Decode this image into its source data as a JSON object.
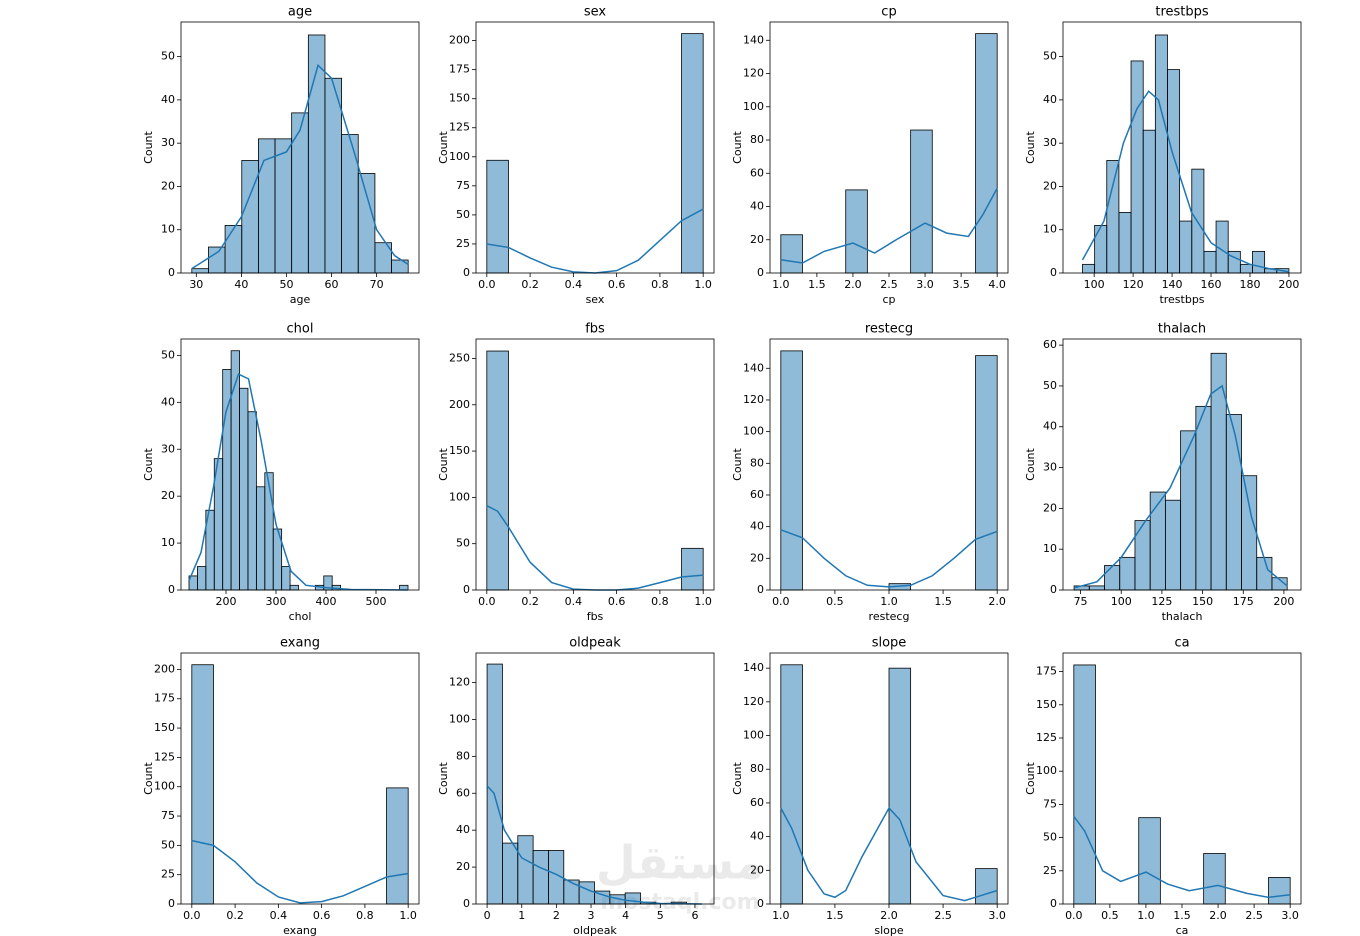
{
  "chart_data": [
    {
      "type": "histogram",
      "title": "age",
      "xlabel": "age",
      "ylabel": "Count",
      "color": "#1f77b4",
      "bins": [
        29,
        32.69,
        36.38,
        40.08,
        43.77,
        47.46,
        51.15,
        54.85,
        58.54,
        62.23,
        65.92,
        69.62,
        73.31,
        77
      ],
      "counts": [
        1,
        6,
        11,
        26,
        31,
        31,
        37,
        55,
        45,
        32,
        23,
        7,
        3
      ],
      "kde": {
        "x": [
          29,
          35,
          40,
          45,
          50,
          53,
          57,
          60,
          65,
          70,
          74,
          77
        ],
        "values": [
          1,
          5,
          13,
          26,
          28,
          33,
          48,
          45,
          28,
          10,
          4,
          2
        ]
      },
      "xlim": [
        26.6,
        79.4
      ],
      "ylim": [
        0,
        58
      ],
      "xticks": [
        30,
        40,
        50,
        60,
        70
      ],
      "yticks": [
        0,
        10,
        20,
        30,
        40,
        50
      ]
    },
    {
      "type": "histogram",
      "title": "sex",
      "xlabel": "sex",
      "ylabel": "Count",
      "color": "#1f77b4",
      "bins": [
        0,
        0.1,
        0.2,
        0.3,
        0.4,
        0.5,
        0.6,
        0.7,
        0.8,
        0.9,
        1
      ],
      "counts": [
        97,
        0,
        0,
        0,
        0,
        0,
        0,
        0,
        0,
        206
      ],
      "kde": {
        "x": [
          0,
          0.1,
          0.2,
          0.3,
          0.4,
          0.5,
          0.6,
          0.7,
          0.8,
          0.9,
          1
        ],
        "values": [
          25,
          22,
          13,
          5,
          1,
          0,
          2,
          11,
          28,
          45,
          55
        ]
      },
      "xlim": [
        -0.05,
        1.05
      ],
      "ylim": [
        0,
        216
      ],
      "xticks": [
        {
          "value": 0,
          "label": "0.0"
        },
        0.2,
        0.4,
        0.6,
        0.8,
        {
          "value": 1,
          "label": "1.0"
        }
      ],
      "yticks": [
        0,
        25,
        50,
        75,
        100,
        125,
        150,
        175,
        200
      ]
    },
    {
      "type": "histogram",
      "title": "cp",
      "xlabel": "cp",
      "ylabel": "Count",
      "color": "#1f77b4",
      "bins": [
        1,
        1.3,
        1.6,
        1.9,
        2.2,
        2.5,
        2.8,
        3.1,
        3.4,
        3.7,
        4
      ],
      "counts": [
        23,
        0,
        0,
        50,
        0,
        0,
        86,
        0,
        0,
        144
      ],
      "kde": {
        "x": [
          1,
          1.3,
          1.6,
          2,
          2.3,
          2.6,
          3,
          3.3,
          3.6,
          3.8,
          4
        ],
        "values": [
          8,
          6,
          13,
          18,
          12,
          20,
          30,
          24,
          22,
          35,
          51
        ]
      },
      "xlim": [
        0.85,
        4.15
      ],
      "ylim": [
        0,
        151
      ],
      "xticks": [
        {
          "value": 1,
          "label": "1.0"
        },
        1.5,
        {
          "value": 2,
          "label": "2.0"
        },
        2.5,
        {
          "value": 3,
          "label": "3.0"
        },
        3.5,
        {
          "value": 4,
          "label": "4.0"
        }
      ],
      "yticks": [
        0,
        20,
        40,
        60,
        80,
        100,
        120,
        140
      ]
    },
    {
      "type": "histogram",
      "title": "trestbps",
      "xlabel": "trestbps",
      "ylabel": "Count",
      "color": "#1f77b4",
      "bins": [
        94,
        100.24,
        106.47,
        112.71,
        118.94,
        125.18,
        131.41,
        137.65,
        143.88,
        150.12,
        156.35,
        162.59,
        168.82,
        175.06,
        181.29,
        187.53,
        193.76,
        200
      ],
      "counts": [
        2,
        11,
        26,
        14,
        49,
        33,
        55,
        47,
        12,
        24,
        5,
        12,
        5,
        2,
        5,
        1,
        1
      ],
      "kde": {
        "x": [
          94,
          105,
          115,
          122,
          128,
          133,
          140,
          150,
          160,
          170,
          180,
          190,
          200
        ],
        "values": [
          3,
          12,
          30,
          38,
          42,
          40,
          28,
          14,
          7,
          4,
          2,
          1,
          0.3
        ]
      },
      "xlim": [
        84,
        206.2
      ],
      "ylim": [
        0,
        58
      ],
      "xticks": [
        100,
        120,
        140,
        160,
        180,
        200
      ],
      "yticks": [
        0,
        10,
        20,
        30,
        40,
        50
      ]
    },
    {
      "type": "histogram",
      "title": "chol",
      "xlabel": "chol",
      "ylabel": "Count",
      "color": "#1f77b4",
      "bins": [
        126,
        142.85,
        159.69,
        176.54,
        193.38,
        210.23,
        227.08,
        243.92,
        260.77,
        277.62,
        294.46,
        311.31,
        328.15,
        345,
        361.85,
        378.69,
        395.54,
        412.38,
        429.23,
        446.08,
        462.92,
        479.77,
        496.62,
        513.46,
        530.31,
        547.15,
        564
      ],
      "counts": [
        3,
        5,
        17,
        28,
        47,
        51,
        43,
        38,
        22,
        25,
        13,
        5,
        1,
        0,
        0,
        1,
        3,
        1,
        0,
        0,
        0,
        0,
        0,
        0,
        0,
        1
      ],
      "kde": {
        "x": [
          126,
          150,
          175,
          200,
          225,
          245,
          270,
          300,
          330,
          360,
          400,
          450,
          564
        ],
        "values": [
          2,
          8,
          22,
          38,
          46,
          45,
          32,
          14,
          4,
          1,
          0.5,
          0.1,
          0
        ]
      },
      "xlim": [
        110,
        586
      ],
      "ylim": [
        0,
        53.5
      ],
      "xticks": [
        200,
        300,
        400,
        500
      ],
      "yticks": [
        0,
        10,
        20,
        30,
        40,
        50
      ]
    },
    {
      "type": "histogram",
      "title": "fbs",
      "xlabel": "fbs",
      "ylabel": "Count",
      "color": "#1f77b4",
      "bins": [
        0,
        0.1,
        0.2,
        0.3,
        0.4,
        0.5,
        0.6,
        0.7,
        0.8,
        0.9,
        1
      ],
      "counts": [
        258,
        0,
        0,
        0,
        0,
        0,
        0,
        0,
        0,
        45
      ],
      "kde": {
        "x": [
          0,
          0.05,
          0.1,
          0.2,
          0.3,
          0.4,
          0.5,
          0.6,
          0.7,
          0.8,
          0.9,
          1
        ],
        "values": [
          91,
          85,
          68,
          30,
          8,
          1,
          0,
          0,
          2,
          8,
          14,
          16
        ]
      },
      "xlim": [
        -0.05,
        1.05
      ],
      "ylim": [
        0,
        271
      ],
      "xticks": [
        {
          "value": 0,
          "label": "0.0"
        },
        0.2,
        0.4,
        0.6,
        0.8,
        {
          "value": 1,
          "label": "1.0"
        }
      ],
      "yticks": [
        0,
        50,
        100,
        150,
        200,
        250
      ]
    },
    {
      "type": "histogram",
      "title": "restecg",
      "xlabel": "restecg",
      "ylabel": "Count",
      "color": "#1f77b4",
      "bins": [
        0,
        0.2,
        0.4,
        0.6,
        0.8,
        1,
        1.2,
        1.4,
        1.6,
        1.8,
        2
      ],
      "counts": [
        151,
        0,
        0,
        0,
        0,
        4,
        0,
        0,
        0,
        148
      ],
      "kde": {
        "x": [
          0,
          0.2,
          0.4,
          0.6,
          0.8,
          1,
          1.2,
          1.4,
          1.6,
          1.8,
          2
        ],
        "values": [
          38,
          33,
          20,
          9,
          3,
          2,
          3,
          9,
          20,
          32,
          37
        ]
      },
      "xlim": [
        -0.1,
        2.1
      ],
      "ylim": [
        0,
        158.5
      ],
      "xticks": [
        {
          "value": 0,
          "label": "0.0"
        },
        0.5,
        {
          "value": 1,
          "label": "1.0"
        },
        1.5,
        {
          "value": 2,
          "label": "2.0"
        }
      ],
      "yticks": [
        0,
        20,
        40,
        60,
        80,
        100,
        120,
        140
      ]
    },
    {
      "type": "histogram",
      "title": "thalach",
      "xlabel": "thalach",
      "ylabel": "Count",
      "color": "#1f77b4",
      "bins": [
        71,
        80.36,
        89.71,
        99.07,
        108.43,
        117.79,
        127.14,
        136.5,
        145.86,
        155.21,
        164.57,
        173.93,
        183.29,
        192.64,
        202
      ],
      "counts": [
        1,
        1,
        6,
        8,
        17,
        24,
        22,
        39,
        45,
        58,
        43,
        28,
        8,
        3
      ],
      "kde": {
        "x": [
          71,
          85,
          100,
          115,
          130,
          145,
          155,
          162,
          170,
          180,
          190,
          202
        ],
        "values": [
          0.5,
          2,
          8,
          17,
          25,
          38,
          48,
          50,
          38,
          18,
          5,
          1
        ]
      },
      "xlim": [
        64.2,
        210.5
      ],
      "ylim": [
        0,
        61.5
      ],
      "xticks": [
        75,
        100,
        125,
        150,
        175,
        200
      ],
      "yticks": [
        0,
        10,
        20,
        30,
        40,
        50,
        60
      ]
    },
    {
      "type": "histogram",
      "title": "exang",
      "xlabel": "exang",
      "ylabel": "Count",
      "color": "#1f77b4",
      "bins": [
        0,
        0.1,
        0.2,
        0.3,
        0.4,
        0.5,
        0.6,
        0.7,
        0.8,
        0.9,
        1
      ],
      "counts": [
        204,
        0,
        0,
        0,
        0,
        0,
        0,
        0,
        0,
        99
      ],
      "kde": {
        "x": [
          0,
          0.1,
          0.2,
          0.3,
          0.4,
          0.5,
          0.6,
          0.7,
          0.8,
          0.9,
          1
        ],
        "values": [
          54,
          50,
          36,
          18,
          6,
          1,
          2,
          7,
          15,
          23,
          26
        ]
      },
      "xlim": [
        -0.05,
        1.05
      ],
      "ylim": [
        0,
        214
      ],
      "xticks": [
        {
          "value": 0,
          "label": "0.0"
        },
        0.2,
        0.4,
        0.6,
        0.8,
        {
          "value": 1,
          "label": "1.0"
        }
      ],
      "yticks": [
        0,
        25,
        50,
        75,
        100,
        125,
        150,
        175,
        200
      ]
    },
    {
      "type": "histogram",
      "title": "oldpeak",
      "xlabel": "oldpeak",
      "ylabel": "Count",
      "color": "#1f77b4",
      "bins": [
        0,
        0.443,
        0.886,
        1.329,
        1.771,
        2.214,
        2.657,
        3.1,
        3.543,
        3.986,
        4.429,
        4.871,
        5.314,
        5.757,
        6.2
      ],
      "counts": [
        130,
        33,
        37,
        29,
        29,
        13,
        12,
        7,
        5,
        6,
        1,
        0,
        1,
        0
      ],
      "kde": {
        "x": [
          0,
          0.2,
          0.5,
          1,
          1.5,
          2,
          2.5,
          3,
          3.5,
          4,
          4.5,
          5,
          6.2
        ],
        "values": [
          64,
          60,
          40,
          25,
          20,
          16,
          11,
          7,
          4,
          2,
          1,
          0.3,
          0
        ]
      },
      "xlim": [
        -0.32,
        6.55
      ],
      "ylim": [
        0,
        136
      ],
      "xticks": [
        0,
        1,
        2,
        3,
        4,
        5,
        6
      ],
      "yticks": [
        0,
        20,
        40,
        60,
        80,
        100,
        120
      ]
    },
    {
      "type": "histogram",
      "title": "slope",
      "xlabel": "slope",
      "ylabel": "Count",
      "color": "#1f77b4",
      "bins": [
        1,
        1.2,
        1.4,
        1.6,
        1.8,
        2,
        2.2,
        2.4,
        2.6,
        2.8,
        3
      ],
      "counts": [
        142,
        0,
        0,
        0,
        0,
        140,
        0,
        0,
        0,
        21
      ],
      "kde": {
        "x": [
          1,
          1.1,
          1.25,
          1.4,
          1.5,
          1.6,
          1.75,
          2,
          2.1,
          2.25,
          2.5,
          2.7,
          2.85,
          3
        ],
        "values": [
          57,
          45,
          20,
          6,
          4,
          8,
          28,
          57,
          50,
          25,
          5,
          2,
          5,
          8
        ]
      },
      "xlim": [
        0.9,
        3.1
      ],
      "ylim": [
        0,
        149
      ],
      "xticks": [
        {
          "value": 1,
          "label": "1.0"
        },
        1.5,
        {
          "value": 2,
          "label": "2.0"
        },
        2.5,
        {
          "value": 3,
          "label": "3.0"
        }
      ],
      "yticks": [
        0,
        20,
        40,
        60,
        80,
        100,
        120,
        140
      ]
    },
    {
      "type": "histogram",
      "title": "ca",
      "xlabel": "ca",
      "ylabel": "Count",
      "color": "#1f77b4",
      "bins": [
        0,
        0.3,
        0.6,
        0.9,
        1.2,
        1.5,
        1.8,
        2.1,
        2.4,
        2.7,
        3
      ],
      "counts": [
        180,
        0,
        0,
        65,
        0,
        0,
        38,
        0,
        0,
        20
      ],
      "kde": {
        "x": [
          0,
          0.15,
          0.4,
          0.65,
          1,
          1.3,
          1.6,
          2,
          2.4,
          2.7,
          3
        ],
        "values": [
          66,
          55,
          25,
          17,
          24,
          15,
          10,
          14,
          8,
          5,
          7
        ]
      },
      "xlim": [
        -0.15,
        3.15
      ],
      "ylim": [
        0,
        189
      ],
      "xticks": [
        {
          "value": 0,
          "label": "0.0"
        },
        0.5,
        {
          "value": 1,
          "label": "1.0"
        },
        1.5,
        {
          "value": 2,
          "label": "2.0"
        },
        2.5,
        {
          "value": 3,
          "label": "3.0"
        }
      ],
      "yticks": [
        0,
        25,
        50,
        75,
        100,
        125,
        150,
        175
      ]
    }
  ],
  "watermark": {
    "text": "مستقل",
    "subtext": "mostaql.com"
  }
}
